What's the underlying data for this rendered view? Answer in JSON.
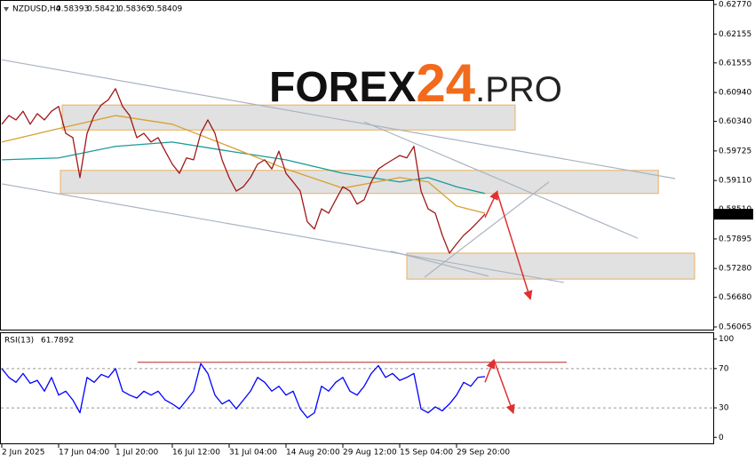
{
  "chart_data": [
    {
      "type": "line",
      "title": "NZDUSD,H4",
      "ohlc": [
        0.58393,
        0.58421,
        0.58365,
        0.58409
      ],
      "watermark": [
        "FOREX",
        "24",
        ".PRO"
      ],
      "watermark_colors": [
        "#111111",
        "#f26a1b",
        "#222222"
      ],
      "xlim": [
        0,
        100
      ],
      "ylim": [
        0.55991,
        0.62863
      ],
      "yticks": [
        {
          "value": 0.6277,
          "label": "0.62770"
        },
        {
          "value": 0.62155,
          "label": "0.62155"
        },
        {
          "value": 0.61555,
          "label": "0.61555"
        },
        {
          "value": 0.6094,
          "label": "0.60940"
        },
        {
          "value": 0.6034,
          "label": "0.60340"
        },
        {
          "value": 0.59725,
          "label": "0.59725"
        },
        {
          "value": 0.5911,
          "label": "0.59110"
        },
        {
          "value": 0.5851,
          "label": "0.58510"
        },
        {
          "value": 0.57895,
          "label": "0.57895"
        },
        {
          "value": 0.5728,
          "label": "0.57280"
        },
        {
          "value": 0.5668,
          "label": "0.56680"
        },
        {
          "value": 0.56065,
          "label": "0.56065"
        }
      ],
      "series": [
        {
          "color": "#a01818",
          "values": [
            0.6028,
            0.6046,
            0.6037,
            0.6055,
            0.6028,
            0.605,
            0.6037,
            0.6055,
            0.6065,
            0.6009,
            0.6,
            0.5917,
            0.6009,
            0.6046,
            0.6068,
            0.6079,
            0.6102,
            0.6065,
            0.6046,
            0.6,
            0.6009,
            0.5991,
            0.6,
            0.5972,
            0.5945,
            0.5926,
            0.5958,
            0.5954,
            0.6009,
            0.6037,
            0.6009,
            0.5954,
            0.5917,
            0.5889,
            0.5898,
            0.5917,
            0.5945,
            0.5954,
            0.5935,
            0.5972,
            0.5926,
            0.5908,
            0.5889,
            0.5825,
            0.581,
            0.5852,
            0.5843,
            0.5871,
            0.5898,
            0.5889,
            0.5862,
            0.5871,
            0.5908,
            0.5935,
            0.5945,
            0.5954,
            0.5963,
            0.5958,
            0.5982,
            0.5889,
            0.5852,
            0.5843,
            0.5797,
            0.576,
            0.5779,
            0.5797,
            0.581,
            0.5825,
            0.58409
          ]
        },
        {
          "color": "#d8a030",
          "x": [
            0,
            8,
            16,
            24,
            32,
            40,
            48,
            56,
            60,
            64,
            68
          ],
          "values": [
            0.5991,
            0.6019,
            0.6046,
            0.6028,
            0.5982,
            0.5935,
            0.5895,
            0.5917,
            0.5908,
            0.5858,
            0.5843
          ]
        },
        {
          "color": "#1a9a9a",
          "x": [
            0,
            8,
            16,
            24,
            32,
            40,
            48,
            56,
            60,
            64,
            68
          ],
          "values": [
            0.5954,
            0.5958,
            0.5982,
            0.5991,
            0.5972,
            0.5954,
            0.5926,
            0.5908,
            0.5917,
            0.5898,
            0.5884
          ]
        }
      ],
      "zones": [
        {
          "xlim": [
            8.5,
            72.25
          ],
          "ylim": [
            0.6016,
            0.6068
          ]
        },
        {
          "xlim": [
            8.25,
            92.4
          ],
          "ylim": [
            0.5884,
            0.5932
          ]
        },
        {
          "xlim": [
            57,
            97.5
          ],
          "ylim": [
            0.5706,
            0.576
          ]
        }
      ],
      "zone_color": "#dcdcdc",
      "zone_border": "#e8b060",
      "trendlines": [
        {
          "x": [
            0,
            94.75
          ],
          "y": [
            0.6162,
            0.5915
          ]
        },
        {
          "x": [
            0,
            79.1
          ],
          "y": [
            0.5904,
            0.5699
          ]
        },
        {
          "x": [
            51,
            89.5
          ],
          "y": [
            0.6033,
            0.5791
          ]
        },
        {
          "x": [
            59.5,
            77
          ],
          "y": [
            0.571,
            0.5908
          ]
        },
        {
          "x": [
            54.75,
            68.5
          ],
          "y": [
            0.5764,
            0.5712
          ]
        }
      ],
      "trendline_color": "#a9b4c2",
      "arrows": [
        {
          "x": [
            68,
            69.75
          ],
          "y": [
            0.5834,
            0.5889
          ]
        },
        {
          "x": [
            69.75,
            74.4
          ],
          "y": [
            0.5884,
            0.5664
          ]
        }
      ],
      "arrow_color": "#e03030"
    },
    {
      "type": "line",
      "title": "RSI(13)",
      "last": 61.7892,
      "categories": [
        "2 Jun 2025",
        null,
        null,
        null,
        null,
        null,
        null,
        null,
        "17 Jun 04:00",
        null,
        null,
        null,
        null,
        null,
        null,
        null,
        "1 Jul 20:00",
        null,
        null,
        null,
        null,
        null,
        null,
        null,
        "16 Jul 12:00",
        null,
        null,
        null,
        null,
        null,
        null,
        null,
        "31 Jul 04:00",
        null,
        null,
        null,
        null,
        null,
        null,
        null,
        "14 Aug 20:00",
        null,
        null,
        null,
        null,
        null,
        null,
        null,
        "29 Aug 12:00",
        null,
        null,
        null,
        null,
        null,
        null,
        null,
        "15 Sep 04:00",
        null,
        null,
        null,
        null,
        null,
        null,
        null,
        "29 Sep 20:00",
        null,
        null,
        null,
        null
      ],
      "xlim": [
        0,
        100
      ],
      "ylim": [
        -7,
        106
      ],
      "yticks": [
        100,
        70,
        30,
        0
      ],
      "levels": [
        70,
        30
      ],
      "series": [
        {
          "color": "#0000ff",
          "values": [
            70,
            61,
            56,
            65,
            55,
            58,
            47,
            61,
            43,
            47,
            38,
            25,
            61,
            56,
            64,
            61,
            70,
            47,
            43,
            40,
            47,
            43,
            47,
            38,
            34,
            29,
            38,
            47,
            75,
            65,
            43,
            34,
            38,
            29,
            38,
            47,
            61,
            56,
            47,
            52,
            43,
            47,
            29,
            20,
            25,
            52,
            47,
            56,
            61,
            47,
            43,
            52,
            65,
            73,
            61,
            65,
            58,
            61,
            65,
            29,
            25,
            31,
            27,
            34,
            43,
            56,
            52,
            61,
            61.7892
          ]
        }
      ],
      "hlines": [
        {
          "x": [
            19.1,
            79.5
          ],
          "y": [
            76.4,
            76.4
          ]
        }
      ],
      "hline_color": "#c05050",
      "arrows": [
        {
          "x": [
            68,
            69.25
          ],
          "y": [
            56,
            79
          ]
        },
        {
          "x": [
            69.25,
            72
          ],
          "y": [
            79,
            24.5
          ]
        }
      ],
      "arrow_color": "#e03030"
    }
  ]
}
